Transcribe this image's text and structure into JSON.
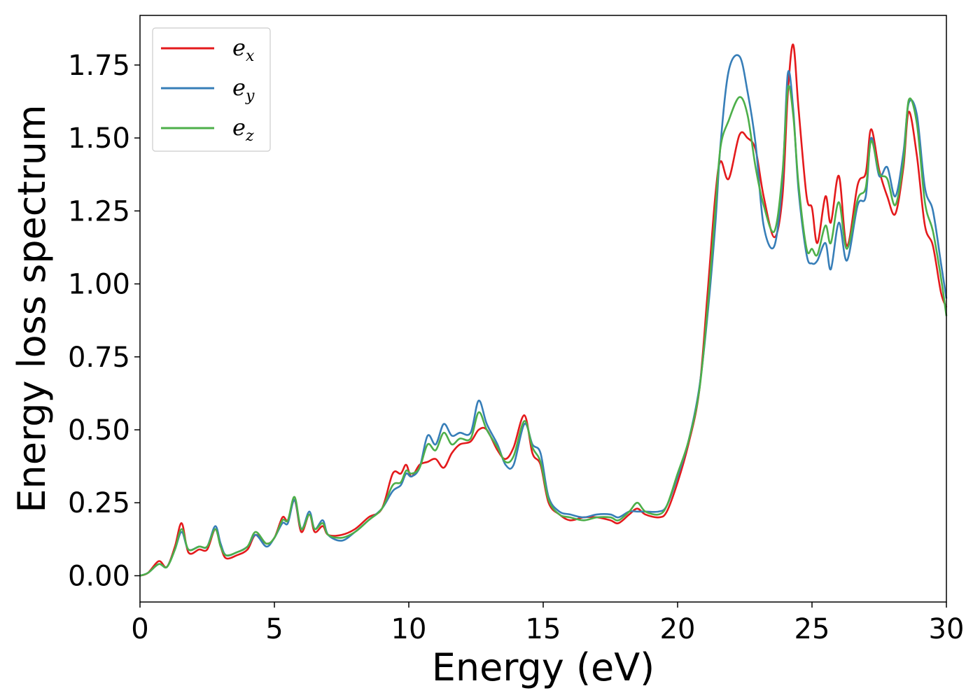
{
  "chart_data": {
    "type": "line",
    "title": "",
    "xlabel": "Energy (eV)",
    "ylabel": "Energy loss spectrum",
    "xlim": [
      0,
      30
    ],
    "ylim": [
      -0.09,
      1.92
    ],
    "xticks": [
      0,
      5,
      10,
      15,
      20,
      25,
      30
    ],
    "xtick_labels": [
      "0",
      "5",
      "10",
      "15",
      "20",
      "25",
      "30"
    ],
    "yticks": [
      0.0,
      0.25,
      0.5,
      0.75,
      1.0,
      1.25,
      1.5,
      1.75
    ],
    "ytick_labels": [
      "0.00",
      "0.25",
      "0.50",
      "0.75",
      "1.00",
      "1.25",
      "1.50",
      "1.75"
    ],
    "grid": false,
    "legend_position": "top-left",
    "series": [
      {
        "name": "e",
        "subscript": "x",
        "color": "#e41a1c",
        "points": [
          [
            0,
            0.0
          ],
          [
            0.3,
            0.01
          ],
          [
            0.7,
            0.05
          ],
          [
            1.0,
            0.03
          ],
          [
            1.3,
            0.1
          ],
          [
            1.55,
            0.18
          ],
          [
            1.8,
            0.08
          ],
          [
            2.2,
            0.09
          ],
          [
            2.5,
            0.09
          ],
          [
            2.8,
            0.16
          ],
          [
            3.0,
            0.1
          ],
          [
            3.2,
            0.06
          ],
          [
            3.6,
            0.07
          ],
          [
            4.0,
            0.09
          ],
          [
            4.3,
            0.14
          ],
          [
            4.7,
            0.11
          ],
          [
            5.0,
            0.13
          ],
          [
            5.3,
            0.2
          ],
          [
            5.5,
            0.19
          ],
          [
            5.75,
            0.26
          ],
          [
            6.0,
            0.15
          ],
          [
            6.3,
            0.21
          ],
          [
            6.5,
            0.15
          ],
          [
            6.8,
            0.17
          ],
          [
            7.0,
            0.14
          ],
          [
            7.5,
            0.14
          ],
          [
            8.0,
            0.16
          ],
          [
            8.5,
            0.2
          ],
          [
            9.0,
            0.23
          ],
          [
            9.4,
            0.35
          ],
          [
            9.7,
            0.35
          ],
          [
            9.9,
            0.38
          ],
          [
            10.1,
            0.34
          ],
          [
            10.4,
            0.38
          ],
          [
            10.7,
            0.39
          ],
          [
            11.0,
            0.4
          ],
          [
            11.3,
            0.37
          ],
          [
            11.6,
            0.42
          ],
          [
            11.9,
            0.45
          ],
          [
            12.3,
            0.46
          ],
          [
            12.6,
            0.5
          ],
          [
            12.9,
            0.5
          ],
          [
            13.3,
            0.43
          ],
          [
            13.6,
            0.4
          ],
          [
            13.9,
            0.44
          ],
          [
            14.3,
            0.55
          ],
          [
            14.6,
            0.42
          ],
          [
            14.9,
            0.38
          ],
          [
            15.2,
            0.25
          ],
          [
            15.6,
            0.21
          ],
          [
            16.0,
            0.19
          ],
          [
            16.5,
            0.2
          ],
          [
            17.0,
            0.2
          ],
          [
            17.5,
            0.19
          ],
          [
            17.8,
            0.18
          ],
          [
            18.2,
            0.21
          ],
          [
            18.5,
            0.23
          ],
          [
            18.8,
            0.21
          ],
          [
            19.3,
            0.2
          ],
          [
            19.6,
            0.22
          ],
          [
            20.0,
            0.32
          ],
          [
            20.4,
            0.45
          ],
          [
            20.8,
            0.63
          ],
          [
            21.1,
            0.95
          ],
          [
            21.4,
            1.3
          ],
          [
            21.6,
            1.42
          ],
          [
            21.9,
            1.36
          ],
          [
            22.3,
            1.51
          ],
          [
            22.6,
            1.5
          ],
          [
            22.9,
            1.46
          ],
          [
            23.2,
            1.3
          ],
          [
            23.6,
            1.16
          ],
          [
            23.9,
            1.3
          ],
          [
            24.1,
            1.65
          ],
          [
            24.3,
            1.82
          ],
          [
            24.5,
            1.6
          ],
          [
            24.8,
            1.3
          ],
          [
            25.0,
            1.26
          ],
          [
            25.2,
            1.14
          ],
          [
            25.5,
            1.3
          ],
          [
            25.7,
            1.21
          ],
          [
            26.0,
            1.37
          ],
          [
            26.3,
            1.13
          ],
          [
            26.7,
            1.34
          ],
          [
            27.0,
            1.38
          ],
          [
            27.2,
            1.53
          ],
          [
            27.5,
            1.39
          ],
          [
            27.8,
            1.3
          ],
          [
            28.1,
            1.24
          ],
          [
            28.4,
            1.4
          ],
          [
            28.6,
            1.59
          ],
          [
            28.9,
            1.44
          ],
          [
            29.2,
            1.2
          ],
          [
            29.5,
            1.13
          ],
          [
            29.8,
            0.97
          ],
          [
            30.0,
            0.92
          ]
        ]
      },
      {
        "name": "e",
        "subscript": "y",
        "color": "#377eb8",
        "points": [
          [
            0,
            0.0
          ],
          [
            0.3,
            0.01
          ],
          [
            0.7,
            0.04
          ],
          [
            1.0,
            0.03
          ],
          [
            1.3,
            0.09
          ],
          [
            1.55,
            0.15
          ],
          [
            1.8,
            0.09
          ],
          [
            2.2,
            0.1
          ],
          [
            2.5,
            0.1
          ],
          [
            2.8,
            0.17
          ],
          [
            3.0,
            0.11
          ],
          [
            3.2,
            0.07
          ],
          [
            3.6,
            0.08
          ],
          [
            4.0,
            0.1
          ],
          [
            4.3,
            0.14
          ],
          [
            4.7,
            0.1
          ],
          [
            5.0,
            0.13
          ],
          [
            5.3,
            0.18
          ],
          [
            5.5,
            0.18
          ],
          [
            5.75,
            0.26
          ],
          [
            6.0,
            0.16
          ],
          [
            6.3,
            0.22
          ],
          [
            6.5,
            0.16
          ],
          [
            6.8,
            0.19
          ],
          [
            7.0,
            0.14
          ],
          [
            7.5,
            0.12
          ],
          [
            8.0,
            0.15
          ],
          [
            8.5,
            0.19
          ],
          [
            9.0,
            0.23
          ],
          [
            9.4,
            0.29
          ],
          [
            9.7,
            0.31
          ],
          [
            9.9,
            0.35
          ],
          [
            10.1,
            0.34
          ],
          [
            10.4,
            0.37
          ],
          [
            10.7,
            0.48
          ],
          [
            11.0,
            0.45
          ],
          [
            11.3,
            0.52
          ],
          [
            11.6,
            0.48
          ],
          [
            11.9,
            0.49
          ],
          [
            12.3,
            0.49
          ],
          [
            12.6,
            0.6
          ],
          [
            12.9,
            0.52
          ],
          [
            13.3,
            0.45
          ],
          [
            13.6,
            0.38
          ],
          [
            13.9,
            0.38
          ],
          [
            14.3,
            0.52
          ],
          [
            14.6,
            0.45
          ],
          [
            14.9,
            0.42
          ],
          [
            15.2,
            0.27
          ],
          [
            15.6,
            0.22
          ],
          [
            16.0,
            0.21
          ],
          [
            16.5,
            0.2
          ],
          [
            17.0,
            0.21
          ],
          [
            17.5,
            0.21
          ],
          [
            17.8,
            0.2
          ],
          [
            18.2,
            0.22
          ],
          [
            18.5,
            0.22
          ],
          [
            18.8,
            0.22
          ],
          [
            19.3,
            0.22
          ],
          [
            19.6,
            0.24
          ],
          [
            20.0,
            0.34
          ],
          [
            20.4,
            0.46
          ],
          [
            20.8,
            0.64
          ],
          [
            21.1,
            0.88
          ],
          [
            21.4,
            1.2
          ],
          [
            21.6,
            1.48
          ],
          [
            21.9,
            1.73
          ],
          [
            22.3,
            1.78
          ],
          [
            22.6,
            1.66
          ],
          [
            22.9,
            1.48
          ],
          [
            23.2,
            1.2
          ],
          [
            23.6,
            1.13
          ],
          [
            23.9,
            1.36
          ],
          [
            24.1,
            1.72
          ],
          [
            24.3,
            1.6
          ],
          [
            24.5,
            1.32
          ],
          [
            24.8,
            1.1
          ],
          [
            25.0,
            1.07
          ],
          [
            25.2,
            1.08
          ],
          [
            25.5,
            1.14
          ],
          [
            25.7,
            1.05
          ],
          [
            26.0,
            1.21
          ],
          [
            26.3,
            1.08
          ],
          [
            26.7,
            1.27
          ],
          [
            27.0,
            1.3
          ],
          [
            27.2,
            1.5
          ],
          [
            27.5,
            1.37
          ],
          [
            27.8,
            1.4
          ],
          [
            28.1,
            1.3
          ],
          [
            28.4,
            1.45
          ],
          [
            28.6,
            1.62
          ],
          [
            28.9,
            1.58
          ],
          [
            29.2,
            1.33
          ],
          [
            29.5,
            1.25
          ],
          [
            29.8,
            1.07
          ],
          [
            30.0,
            0.95
          ]
        ]
      },
      {
        "name": "e",
        "subscript": "z",
        "color": "#4daf4a",
        "points": [
          [
            0,
            0.0
          ],
          [
            0.3,
            0.01
          ],
          [
            0.7,
            0.04
          ],
          [
            1.0,
            0.03
          ],
          [
            1.3,
            0.09
          ],
          [
            1.55,
            0.16
          ],
          [
            1.8,
            0.09
          ],
          [
            2.2,
            0.1
          ],
          [
            2.5,
            0.1
          ],
          [
            2.8,
            0.16
          ],
          [
            3.0,
            0.1
          ],
          [
            3.2,
            0.07
          ],
          [
            3.6,
            0.08
          ],
          [
            4.0,
            0.1
          ],
          [
            4.3,
            0.15
          ],
          [
            4.7,
            0.11
          ],
          [
            5.0,
            0.13
          ],
          [
            5.3,
            0.19
          ],
          [
            5.5,
            0.19
          ],
          [
            5.75,
            0.27
          ],
          [
            6.0,
            0.16
          ],
          [
            6.3,
            0.21
          ],
          [
            6.5,
            0.16
          ],
          [
            6.8,
            0.18
          ],
          [
            7.0,
            0.14
          ],
          [
            7.5,
            0.13
          ],
          [
            8.0,
            0.15
          ],
          [
            8.5,
            0.19
          ],
          [
            9.0,
            0.23
          ],
          [
            9.4,
            0.31
          ],
          [
            9.7,
            0.32
          ],
          [
            9.9,
            0.36
          ],
          [
            10.1,
            0.35
          ],
          [
            10.4,
            0.37
          ],
          [
            10.7,
            0.45
          ],
          [
            11.0,
            0.43
          ],
          [
            11.3,
            0.49
          ],
          [
            11.6,
            0.45
          ],
          [
            11.9,
            0.47
          ],
          [
            12.3,
            0.47
          ],
          [
            12.6,
            0.56
          ],
          [
            12.9,
            0.5
          ],
          [
            13.3,
            0.44
          ],
          [
            13.6,
            0.39
          ],
          [
            13.9,
            0.41
          ],
          [
            14.3,
            0.53
          ],
          [
            14.6,
            0.44
          ],
          [
            14.9,
            0.39
          ],
          [
            15.2,
            0.26
          ],
          [
            15.6,
            0.21
          ],
          [
            16.0,
            0.2
          ],
          [
            16.5,
            0.19
          ],
          [
            17.0,
            0.2
          ],
          [
            17.5,
            0.2
          ],
          [
            17.8,
            0.19
          ],
          [
            18.2,
            0.22
          ],
          [
            18.5,
            0.25
          ],
          [
            18.8,
            0.22
          ],
          [
            19.3,
            0.21
          ],
          [
            19.6,
            0.24
          ],
          [
            20.0,
            0.35
          ],
          [
            20.4,
            0.46
          ],
          [
            20.8,
            0.63
          ],
          [
            21.1,
            0.9
          ],
          [
            21.4,
            1.25
          ],
          [
            21.6,
            1.47
          ],
          [
            21.9,
            1.56
          ],
          [
            22.3,
            1.64
          ],
          [
            22.6,
            1.58
          ],
          [
            22.9,
            1.4
          ],
          [
            23.2,
            1.27
          ],
          [
            23.6,
            1.18
          ],
          [
            23.9,
            1.38
          ],
          [
            24.1,
            1.67
          ],
          [
            24.3,
            1.58
          ],
          [
            24.5,
            1.34
          ],
          [
            24.8,
            1.12
          ],
          [
            25.0,
            1.12
          ],
          [
            25.2,
            1.1
          ],
          [
            25.5,
            1.2
          ],
          [
            25.7,
            1.14
          ],
          [
            26.0,
            1.28
          ],
          [
            26.3,
            1.12
          ],
          [
            26.7,
            1.29
          ],
          [
            27.0,
            1.33
          ],
          [
            27.2,
            1.49
          ],
          [
            27.5,
            1.38
          ],
          [
            27.8,
            1.36
          ],
          [
            28.1,
            1.27
          ],
          [
            28.4,
            1.42
          ],
          [
            28.6,
            1.63
          ],
          [
            28.9,
            1.55
          ],
          [
            29.2,
            1.28
          ],
          [
            29.5,
            1.18
          ],
          [
            29.8,
            1.02
          ],
          [
            30.0,
            0.89
          ]
        ]
      }
    ]
  }
}
